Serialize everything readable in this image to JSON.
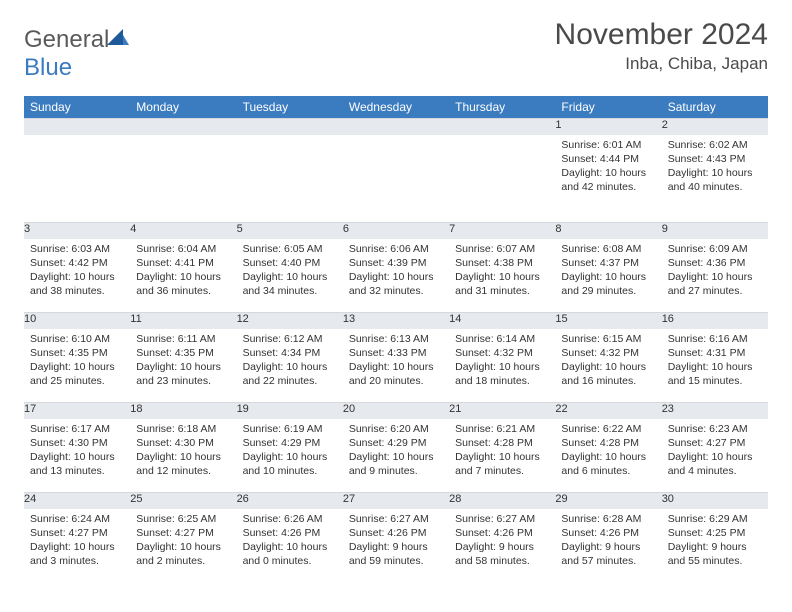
{
  "logo": {
    "word1": "General",
    "word2": "Blue"
  },
  "header": {
    "month": "November 2024",
    "location": "Inba, Chiba, Japan"
  },
  "weekdays": [
    "Sunday",
    "Monday",
    "Tuesday",
    "Wednesday",
    "Thursday",
    "Friday",
    "Saturday"
  ],
  "colors": {
    "header_bg": "#3b7bbf",
    "daynum_bg": "#e6e9ed",
    "text": "#333333"
  },
  "weeks": [
    [
      null,
      null,
      null,
      null,
      null,
      {
        "n": "1",
        "sr": "Sunrise: 6:01 AM",
        "ss": "Sunset: 4:44 PM",
        "dl1": "Daylight: 10 hours",
        "dl2": "and 42 minutes."
      },
      {
        "n": "2",
        "sr": "Sunrise: 6:02 AM",
        "ss": "Sunset: 4:43 PM",
        "dl1": "Daylight: 10 hours",
        "dl2": "and 40 minutes."
      }
    ],
    [
      {
        "n": "3",
        "sr": "Sunrise: 6:03 AM",
        "ss": "Sunset: 4:42 PM",
        "dl1": "Daylight: 10 hours",
        "dl2": "and 38 minutes."
      },
      {
        "n": "4",
        "sr": "Sunrise: 6:04 AM",
        "ss": "Sunset: 4:41 PM",
        "dl1": "Daylight: 10 hours",
        "dl2": "and 36 minutes."
      },
      {
        "n": "5",
        "sr": "Sunrise: 6:05 AM",
        "ss": "Sunset: 4:40 PM",
        "dl1": "Daylight: 10 hours",
        "dl2": "and 34 minutes."
      },
      {
        "n": "6",
        "sr": "Sunrise: 6:06 AM",
        "ss": "Sunset: 4:39 PM",
        "dl1": "Daylight: 10 hours",
        "dl2": "and 32 minutes."
      },
      {
        "n": "7",
        "sr": "Sunrise: 6:07 AM",
        "ss": "Sunset: 4:38 PM",
        "dl1": "Daylight: 10 hours",
        "dl2": "and 31 minutes."
      },
      {
        "n": "8",
        "sr": "Sunrise: 6:08 AM",
        "ss": "Sunset: 4:37 PM",
        "dl1": "Daylight: 10 hours",
        "dl2": "and 29 minutes."
      },
      {
        "n": "9",
        "sr": "Sunrise: 6:09 AM",
        "ss": "Sunset: 4:36 PM",
        "dl1": "Daylight: 10 hours",
        "dl2": "and 27 minutes."
      }
    ],
    [
      {
        "n": "10",
        "sr": "Sunrise: 6:10 AM",
        "ss": "Sunset: 4:35 PM",
        "dl1": "Daylight: 10 hours",
        "dl2": "and 25 minutes."
      },
      {
        "n": "11",
        "sr": "Sunrise: 6:11 AM",
        "ss": "Sunset: 4:35 PM",
        "dl1": "Daylight: 10 hours",
        "dl2": "and 23 minutes."
      },
      {
        "n": "12",
        "sr": "Sunrise: 6:12 AM",
        "ss": "Sunset: 4:34 PM",
        "dl1": "Daylight: 10 hours",
        "dl2": "and 22 minutes."
      },
      {
        "n": "13",
        "sr": "Sunrise: 6:13 AM",
        "ss": "Sunset: 4:33 PM",
        "dl1": "Daylight: 10 hours",
        "dl2": "and 20 minutes."
      },
      {
        "n": "14",
        "sr": "Sunrise: 6:14 AM",
        "ss": "Sunset: 4:32 PM",
        "dl1": "Daylight: 10 hours",
        "dl2": "and 18 minutes."
      },
      {
        "n": "15",
        "sr": "Sunrise: 6:15 AM",
        "ss": "Sunset: 4:32 PM",
        "dl1": "Daylight: 10 hours",
        "dl2": "and 16 minutes."
      },
      {
        "n": "16",
        "sr": "Sunrise: 6:16 AM",
        "ss": "Sunset: 4:31 PM",
        "dl1": "Daylight: 10 hours",
        "dl2": "and 15 minutes."
      }
    ],
    [
      {
        "n": "17",
        "sr": "Sunrise: 6:17 AM",
        "ss": "Sunset: 4:30 PM",
        "dl1": "Daylight: 10 hours",
        "dl2": "and 13 minutes."
      },
      {
        "n": "18",
        "sr": "Sunrise: 6:18 AM",
        "ss": "Sunset: 4:30 PM",
        "dl1": "Daylight: 10 hours",
        "dl2": "and 12 minutes."
      },
      {
        "n": "19",
        "sr": "Sunrise: 6:19 AM",
        "ss": "Sunset: 4:29 PM",
        "dl1": "Daylight: 10 hours",
        "dl2": "and 10 minutes."
      },
      {
        "n": "20",
        "sr": "Sunrise: 6:20 AM",
        "ss": "Sunset: 4:29 PM",
        "dl1": "Daylight: 10 hours",
        "dl2": "and 9 minutes."
      },
      {
        "n": "21",
        "sr": "Sunrise: 6:21 AM",
        "ss": "Sunset: 4:28 PM",
        "dl1": "Daylight: 10 hours",
        "dl2": "and 7 minutes."
      },
      {
        "n": "22",
        "sr": "Sunrise: 6:22 AM",
        "ss": "Sunset: 4:28 PM",
        "dl1": "Daylight: 10 hours",
        "dl2": "and 6 minutes."
      },
      {
        "n": "23",
        "sr": "Sunrise: 6:23 AM",
        "ss": "Sunset: 4:27 PM",
        "dl1": "Daylight: 10 hours",
        "dl2": "and 4 minutes."
      }
    ],
    [
      {
        "n": "24",
        "sr": "Sunrise: 6:24 AM",
        "ss": "Sunset: 4:27 PM",
        "dl1": "Daylight: 10 hours",
        "dl2": "and 3 minutes."
      },
      {
        "n": "25",
        "sr": "Sunrise: 6:25 AM",
        "ss": "Sunset: 4:27 PM",
        "dl1": "Daylight: 10 hours",
        "dl2": "and 2 minutes."
      },
      {
        "n": "26",
        "sr": "Sunrise: 6:26 AM",
        "ss": "Sunset: 4:26 PM",
        "dl1": "Daylight: 10 hours",
        "dl2": "and 0 minutes."
      },
      {
        "n": "27",
        "sr": "Sunrise: 6:27 AM",
        "ss": "Sunset: 4:26 PM",
        "dl1": "Daylight: 9 hours",
        "dl2": "and 59 minutes."
      },
      {
        "n": "28",
        "sr": "Sunrise: 6:27 AM",
        "ss": "Sunset: 4:26 PM",
        "dl1": "Daylight: 9 hours",
        "dl2": "and 58 minutes."
      },
      {
        "n": "29",
        "sr": "Sunrise: 6:28 AM",
        "ss": "Sunset: 4:26 PM",
        "dl1": "Daylight: 9 hours",
        "dl2": "and 57 minutes."
      },
      {
        "n": "30",
        "sr": "Sunrise: 6:29 AM",
        "ss": "Sunset: 4:25 PM",
        "dl1": "Daylight: 9 hours",
        "dl2": "and 55 minutes."
      }
    ]
  ]
}
